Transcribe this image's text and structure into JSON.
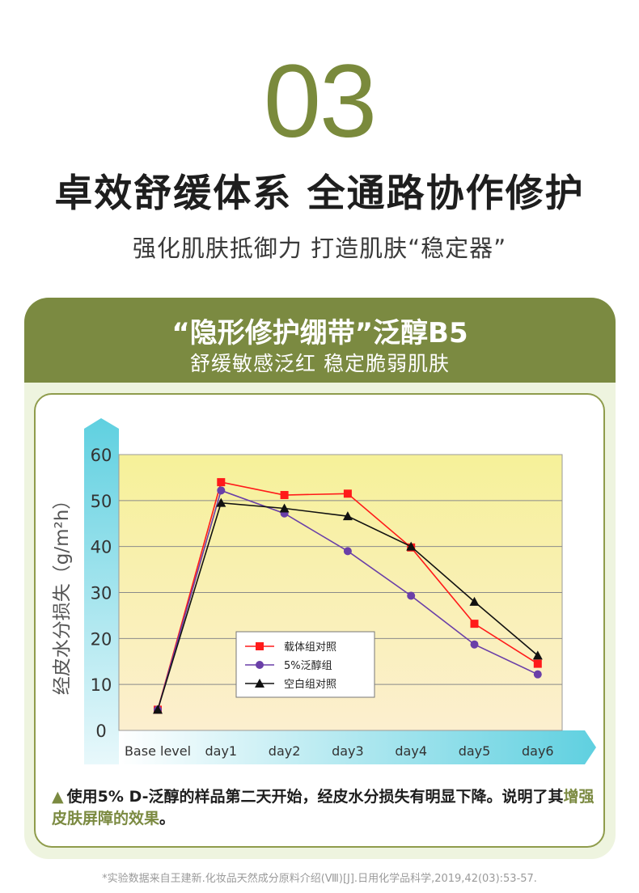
{
  "header": {
    "number": "03",
    "headline": "卓效舒缓体系  全通路协作修护",
    "subline": "强化肌肤抵御力  打造肌肤“稳定器”"
  },
  "card": {
    "title": "“隐形修护绷带”泛醇B5",
    "subtitle": "舒缓敏感泛红  稳定脆弱肌肤"
  },
  "note": {
    "marker": "▲",
    "text_before": "使用5% D-泛醇的样品第二天开始，经皮水分损失有明显下降。说明了其",
    "text_highlight": "增强皮肤屏障的效果",
    "text_after": "。"
  },
  "footnote": "*实验数据来自王建新.化妆品天然成分原料介绍(Ⅷ)[J].日用化学品科学,2019,42(03):53-57.",
  "colors": {
    "accent_green": "#7b8a41",
    "plot_fill_top": "#f6f199",
    "series_red": "#ff1a1a",
    "series_purple": "#6a3fa8",
    "series_black": "#111111",
    "axis_cyan": "#5fd0e0"
  },
  "chart_data": {
    "type": "line",
    "ylabel": "经皮水分损失（g/m²h）",
    "xlabel": "",
    "ylim": [
      0,
      60
    ],
    "yticks": [
      0,
      10,
      20,
      30,
      40,
      50,
      60
    ],
    "categories": [
      "Base level",
      "day1",
      "day2",
      "day3",
      "day4",
      "day5",
      "day6"
    ],
    "grid": true,
    "legend_position": "center-bottom",
    "series": [
      {
        "name": "载体组对照",
        "marker": "square",
        "color": "#ff1a1a",
        "values": [
          4.5,
          54,
          51.2,
          51.5,
          39.8,
          23.2,
          14.5
        ]
      },
      {
        "name": "5%泛醇组",
        "marker": "circle",
        "color": "#6a3fa8",
        "values": [
          4.5,
          52.2,
          47.2,
          39,
          29.3,
          18.7,
          12.2
        ]
      },
      {
        "name": "空白组对照",
        "marker": "triangle",
        "color": "#111111",
        "values": [
          4.5,
          49.5,
          48.3,
          46.6,
          40,
          28,
          16.3
        ]
      }
    ]
  }
}
